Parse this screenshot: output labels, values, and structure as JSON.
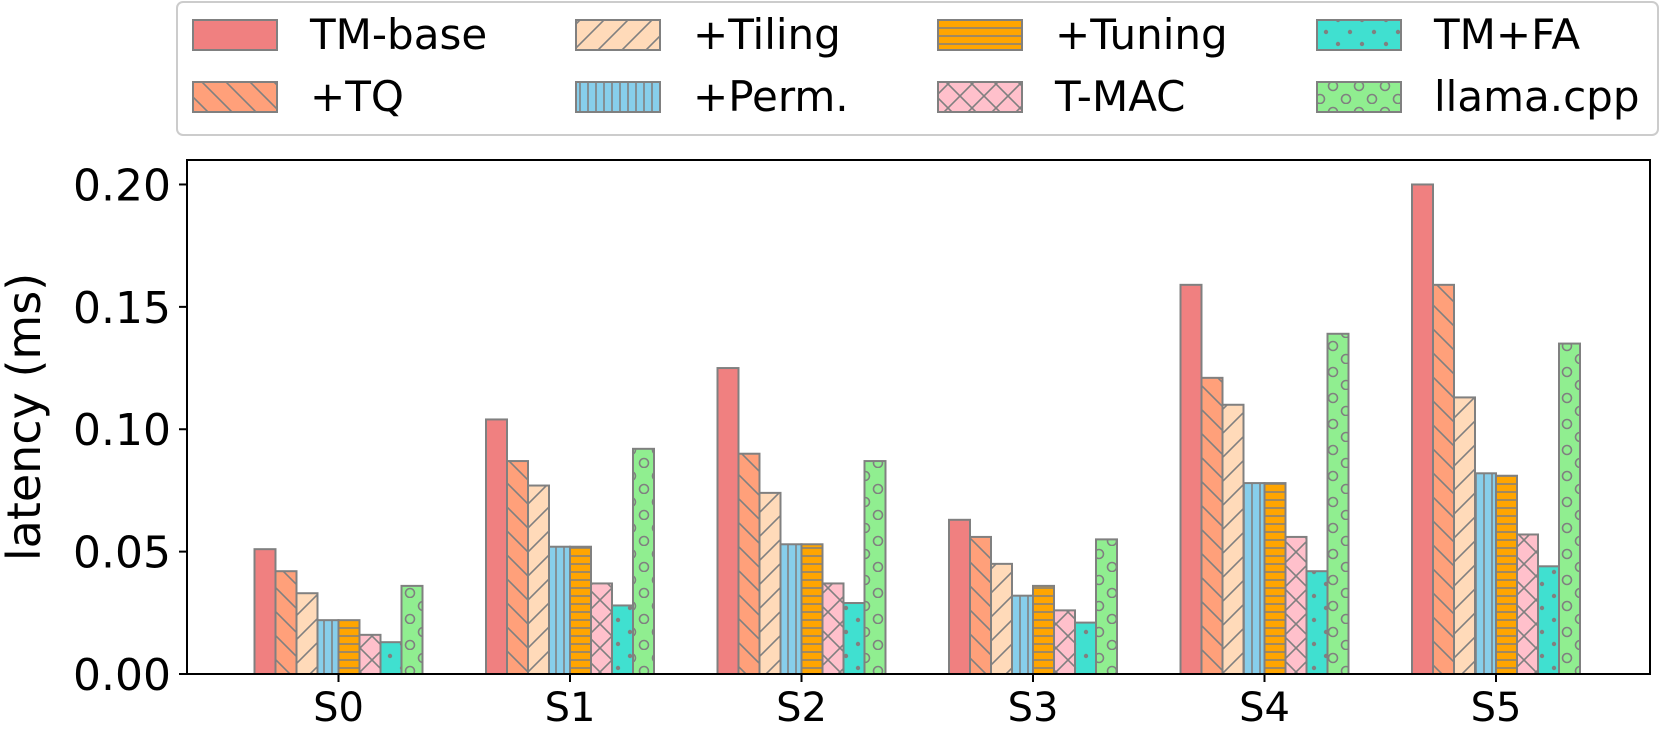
{
  "chart_data": {
    "type": "bar",
    "title": "",
    "xlabel": "",
    "ylabel": "latency (ms)",
    "ylim": [
      0,
      0.21
    ],
    "yticks": [
      0.0,
      0.05,
      0.1,
      0.15,
      0.2
    ],
    "ytick_labels": [
      "0.00",
      "0.05",
      "0.10",
      "0.15",
      "0.20"
    ],
    "grid": false,
    "legend_position": "top",
    "categories": [
      "S0",
      "S1",
      "S2",
      "S3",
      "S4",
      "S5"
    ],
    "series": [
      {
        "name": "TM-base",
        "color": "#f08080",
        "pattern": "none",
        "values": [
          0.051,
          0.104,
          0.125,
          0.063,
          0.159,
          0.2
        ]
      },
      {
        "name": "+TQ",
        "color": "#ffa07a",
        "pattern": "backslash",
        "values": [
          0.042,
          0.087,
          0.09,
          0.056,
          0.121,
          0.159
        ]
      },
      {
        "name": "+Tiling",
        "color": "#ffdab9",
        "pattern": "slash",
        "values": [
          0.033,
          0.077,
          0.074,
          0.045,
          0.11,
          0.113
        ]
      },
      {
        "name": "+Perm.",
        "color": "#87ceeb",
        "pattern": "vertical",
        "values": [
          0.022,
          0.052,
          0.053,
          0.032,
          0.078,
          0.082
        ]
      },
      {
        "name": "+Tuning",
        "color": "#ffa500",
        "pattern": "horizontal",
        "values": [
          0.022,
          0.052,
          0.053,
          0.036,
          0.078,
          0.081
        ]
      },
      {
        "name": "T-MAC",
        "color": "#ffc0cb",
        "pattern": "cross",
        "values": [
          0.016,
          0.037,
          0.037,
          0.026,
          0.056,
          0.057
        ]
      },
      {
        "name": "TM+FA",
        "color": "#40e0d0",
        "pattern": "dots",
        "values": [
          0.013,
          0.028,
          0.029,
          0.021,
          0.042,
          0.044
        ]
      },
      {
        "name": "llama.cpp",
        "color": "#90ee90",
        "pattern": "circles",
        "values": [
          0.036,
          0.092,
          0.087,
          0.055,
          0.139,
          0.135
        ]
      }
    ]
  }
}
